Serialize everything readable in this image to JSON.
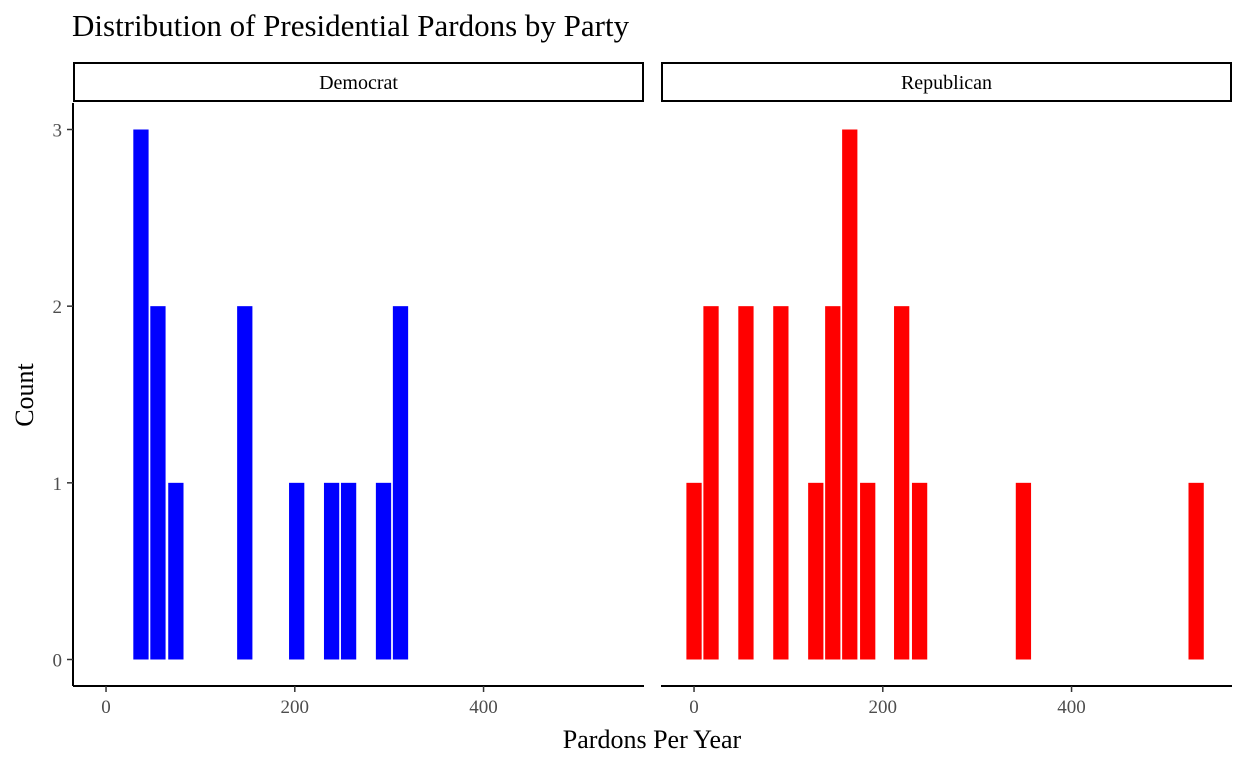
{
  "chart_data": {
    "type": "bar",
    "title": "Distribution of Presidential Pardons by Party",
    "xlabel": "Pardons Per Year",
    "ylabel": "Count",
    "xlim": [
      -35,
      570
    ],
    "ylim": [
      -0.15,
      3.15
    ],
    "x_ticks": [
      0,
      200,
      400
    ],
    "y_ticks": [
      0,
      1,
      2,
      3
    ],
    "bin_width": 18.3,
    "grid": false,
    "facets": [
      {
        "label": "Democrat",
        "color": "#0000ff",
        "bins": [
          {
            "x": 37,
            "count": 3
          },
          {
            "x": 55,
            "count": 2
          },
          {
            "x": 74,
            "count": 1
          },
          {
            "x": 147,
            "count": 2
          },
          {
            "x": 202,
            "count": 1
          },
          {
            "x": 239,
            "count": 1
          },
          {
            "x": 257,
            "count": 1
          },
          {
            "x": 294,
            "count": 1
          },
          {
            "x": 312,
            "count": 2
          }
        ]
      },
      {
        "label": "Republican",
        "color": "#ff0000",
        "bins": [
          {
            "x": 0,
            "count": 1
          },
          {
            "x": 18,
            "count": 2
          },
          {
            "x": 55,
            "count": 2
          },
          {
            "x": 92,
            "count": 2
          },
          {
            "x": 129,
            "count": 1
          },
          {
            "x": 147,
            "count": 2
          },
          {
            "x": 165,
            "count": 3
          },
          {
            "x": 184,
            "count": 1
          },
          {
            "x": 220,
            "count": 2
          },
          {
            "x": 239,
            "count": 1
          },
          {
            "x": 349,
            "count": 1
          },
          {
            "x": 532,
            "count": 1
          }
        ]
      }
    ]
  }
}
